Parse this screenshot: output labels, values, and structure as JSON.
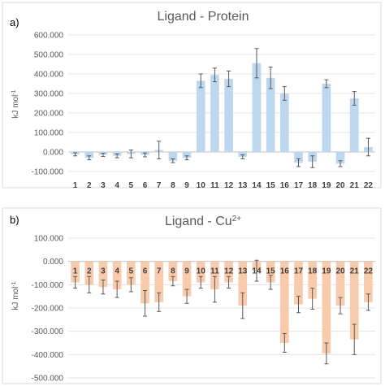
{
  "chart_data": [
    {
      "panel_label": "a)",
      "type": "bar",
      "title": "Ligand - Protein",
      "title_sup": "",
      "ylabel": "kJ mol",
      "ylabel_sup": "-1",
      "ylim": [
        -100,
        600
      ],
      "ytick_labels": [
        "600.000",
        "500.000",
        "400.000",
        "300.000",
        "200.000",
        "100.000",
        "0.000",
        "-100.000"
      ],
      "category_labels_position": "below",
      "bar_color": "#bdd7ee",
      "error_bar_color": "#595959",
      "grid": true,
      "categories": [
        "1",
        "2",
        "3",
        "4",
        "5",
        "6",
        "7",
        "8",
        "9",
        "10",
        "11",
        "12",
        "13",
        "14",
        "15",
        "16",
        "17",
        "18",
        "19",
        "20",
        "21",
        "22"
      ],
      "values": [
        -12,
        -30,
        -15,
        -20,
        -10,
        -15,
        10,
        -45,
        -30,
        365,
        395,
        375,
        -25,
        455,
        380,
        300,
        -55,
        -50,
        350,
        -60,
        275,
        25
      ],
      "errors": [
        8,
        10,
        8,
        10,
        20,
        10,
        45,
        10,
        10,
        35,
        35,
        40,
        10,
        75,
        55,
        35,
        20,
        30,
        20,
        15,
        35,
        45
      ]
    },
    {
      "panel_label": "b)",
      "type": "bar",
      "title": "Ligand - Cu",
      "title_sup": "2+",
      "ylabel": "kJ mol",
      "ylabel_sup": "-1",
      "ylim": [
        -500,
        100
      ],
      "ytick_labels": [
        "100.000",
        "0.000",
        "-100.000",
        "-200.000",
        "-300.000",
        "-400.000",
        "-500.000"
      ],
      "category_labels_position": "inside-top",
      "bar_color": "#f8cbad",
      "error_bar_color": "#595959",
      "grid": true,
      "categories": [
        "1",
        "2",
        "3",
        "4",
        "5",
        "6",
        "7",
        "8",
        "9",
        "10",
        "11",
        "12",
        "13",
        "14",
        "15",
        "16",
        "17",
        "18",
        "19",
        "20",
        "21",
        "22"
      ],
      "values": [
        -90,
        -100,
        -110,
        -120,
        -100,
        -180,
        -175,
        -85,
        -150,
        -90,
        -120,
        -90,
        -190,
        -40,
        -90,
        -350,
        -185,
        -160,
        -395,
        -190,
        -335,
        -175
      ],
      "errors": [
        25,
        35,
        30,
        35,
        30,
        55,
        40,
        20,
        30,
        25,
        55,
        25,
        55,
        45,
        30,
        40,
        35,
        45,
        45,
        35,
        65,
        35
      ]
    }
  ]
}
